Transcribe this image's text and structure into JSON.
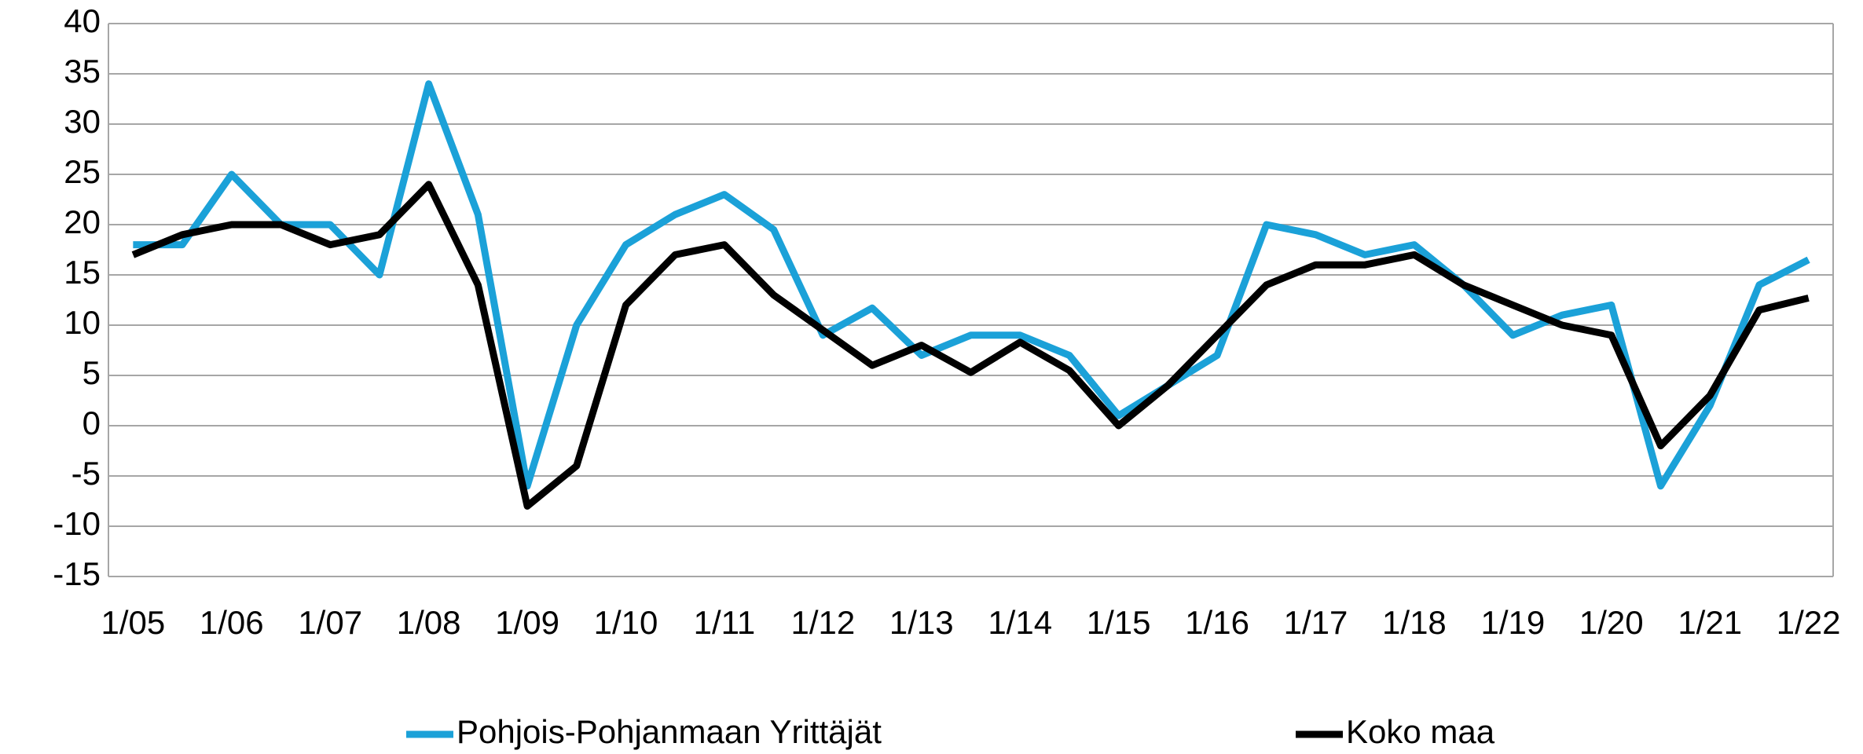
{
  "chart_data": {
    "type": "line",
    "categories": [
      "1/05",
      null,
      "1/06",
      null,
      "1/07",
      null,
      "1/08",
      null,
      "1/09",
      null,
      "1/10",
      null,
      "1/11",
      null,
      "1/12",
      null,
      "1/13",
      null,
      "1/14",
      null,
      "1/15",
      null,
      "1/16",
      null,
      "1/17",
      null,
      "1/18",
      null,
      "1/19",
      null,
      "1/20",
      null,
      "1/21",
      null,
      "1/22"
    ],
    "series": [
      {
        "name": "Pohjois-Pohjanmaan Yrittäjät",
        "color": "#1ba1d8",
        "values": [
          18,
          18,
          25,
          20,
          20,
          15,
          34,
          21,
          -6,
          10,
          18,
          21,
          23,
          19.5,
          9,
          11.7,
          7,
          9,
          9,
          7,
          1,
          4,
          7,
          20,
          19,
          17,
          18,
          14,
          9,
          11,
          12,
          -6,
          2,
          14,
          16.5
        ]
      },
      {
        "name": "Koko maa",
        "color": "#000000",
        "values": [
          17,
          19,
          20,
          20,
          18,
          19,
          24,
          14,
          -8,
          -4,
          12,
          17,
          18,
          13,
          9.5,
          6,
          8,
          5.3,
          8.3,
          5.5,
          0,
          4,
          9,
          14,
          16,
          16,
          17,
          14,
          12,
          10,
          9,
          -2,
          3,
          11.5,
          12.7
        ]
      }
    ],
    "ylim": [
      -15,
      40
    ],
    "yticks": [
      -15,
      -10,
      -5,
      0,
      5,
      10,
      15,
      20,
      25,
      30,
      35,
      40
    ],
    "grid": true,
    "legend": "bottom"
  }
}
